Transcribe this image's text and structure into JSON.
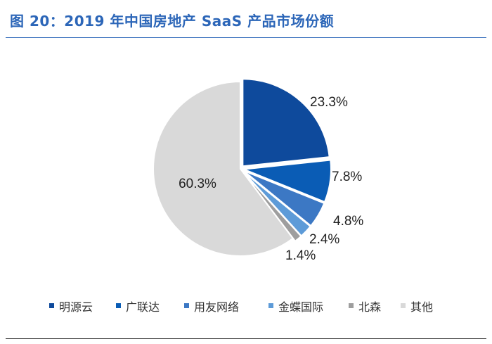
{
  "figure_title": "图 20：2019 年中国房地产 SaaS 产品市场份额",
  "chart_data": {
    "type": "pie",
    "title": "图 20：2019 年中国房地产 SaaS 产品市场份额",
    "categories": [
      "明源云",
      "广联达",
      "用友网络",
      "金蝶国际",
      "北森",
      "其他"
    ],
    "values": [
      23.3,
      7.8,
      4.8,
      2.4,
      1.4,
      60.3
    ],
    "labels": [
      "23.3%",
      "7.8%",
      "4.8%",
      "2.4%",
      "1.4%",
      "60.3%"
    ],
    "colors": [
      "#0e4a9c",
      "#0a5cb5",
      "#3c78c4",
      "#5d9bd8",
      "#9e9e9e",
      "#d9d9d9"
    ],
    "legend_position": "bottom",
    "start_angle_deg": 0,
    "direction": "clockwise"
  }
}
